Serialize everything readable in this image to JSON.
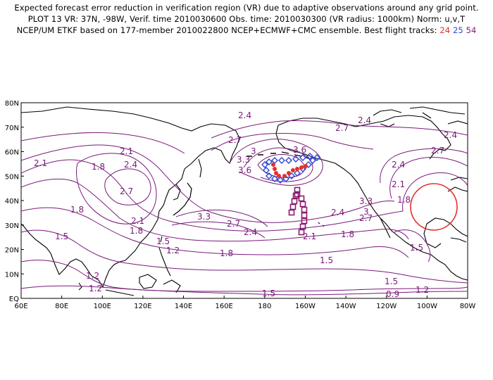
{
  "header": {
    "line1": "Expected forecast error reduction in verification region (VR) due to adaptive observations around any grid point.",
    "line2": "PLOT 13 VR: 37N, -98W, Verif. time 2010030600 Obs. time: 2010030300 (VR radius: 1000km) Norm: u,v,T",
    "line3_prefix": "NCEP/UM ETKF based on 177-member 2010022800 NCEP+ECMWF+CMC ensemble. Best flight tracks:",
    "track_24": "24",
    "track_25": "25",
    "track_54": "54"
  },
  "colors": {
    "contour": "#7a1a7a",
    "coast": "#000000",
    "track_24": "#e53030",
    "track_25": "#2e46d8",
    "track_54": "#8a1a6e",
    "verification_circle": "#e53030"
  },
  "axes": {
    "lon_labels": [
      "60E",
      "80E",
      "100E",
      "120E",
      "140E",
      "160E",
      "180",
      "160W",
      "140W",
      "120W",
      "100W",
      "80W"
    ],
    "lat_labels": [
      "EQ",
      "10N",
      "20N",
      "30N",
      "40N",
      "50N",
      "60N",
      "70N",
      "80N"
    ]
  },
  "contour_labels": [
    "2.4",
    "2.7",
    "3",
    "3.3",
    "3.6",
    "2.1",
    "1.8",
    "1.5",
    "1.2",
    "0.9"
  ],
  "verification_region": {
    "lat": 37,
    "lon": -98,
    "radius_km": 1000
  }
}
